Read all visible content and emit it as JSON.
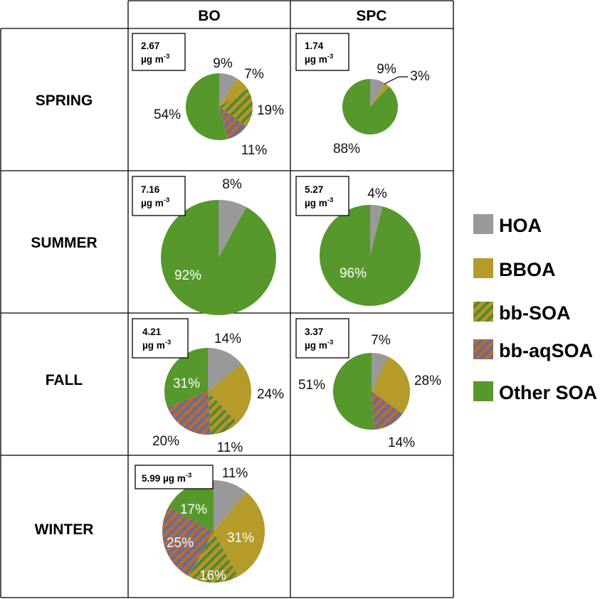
{
  "columns": [
    "BO",
    "SPC"
  ],
  "rows": [
    "SPRING",
    "SUMMER",
    "FALL",
    "WINTER"
  ],
  "colors": {
    "HOA": "#999999",
    "BBOA": "#B49B2A",
    "bb-SOA_base": "#B8932C",
    "bb-SOA_stripe": "#4E8B2E",
    "bb-aqSOA_base": "#6A6E8E",
    "bb-aqSOA_stripe": "#C06A2A",
    "Other SOA": "#56982C"
  },
  "legend": [
    {
      "key": "HOA",
      "label": "HOA",
      "fill": "solid"
    },
    {
      "key": "BBOA",
      "label": "BBOA",
      "fill": "solid"
    },
    {
      "key": "bb-SOA",
      "label": "bb-SOA",
      "fill": "hatched"
    },
    {
      "key": "bb-aqSOA",
      "label": "bb-aqSOA",
      "fill": "hatched"
    },
    {
      "key": "Other SOA",
      "label": "Other SOA",
      "fill": "solid"
    }
  ],
  "chart_data": [
    {
      "type": "pie",
      "row": "SPRING",
      "column": "BO",
      "mass_value": "2.67",
      "mass_unit": "µg m",
      "mass_exp": "-3",
      "slices": [
        {
          "component": "HOA",
          "value": 9,
          "label": "9%"
        },
        {
          "component": "BBOA",
          "value": 7,
          "label": "7%"
        },
        {
          "component": "bb-SOA",
          "value": 19,
          "label": "19%"
        },
        {
          "component": "bb-aqSOA",
          "value": 11,
          "label": "11%"
        },
        {
          "component": "Other SOA",
          "value": 54,
          "label": "54%"
        }
      ]
    },
    {
      "type": "pie",
      "row": "SPRING",
      "column": "SPC",
      "mass_value": "1.74",
      "mass_unit": "µg m",
      "mass_exp": "-3",
      "slices": [
        {
          "component": "HOA",
          "value": 9,
          "label": "9%"
        },
        {
          "component": "BBOA",
          "value": 3,
          "label": "3%"
        },
        {
          "component": "Other SOA",
          "value": 88,
          "label": "88%"
        }
      ]
    },
    {
      "type": "pie",
      "row": "SUMMER",
      "column": "BO",
      "mass_value": "7.16",
      "mass_unit": "µg m",
      "mass_exp": "-3",
      "slices": [
        {
          "component": "HOA",
          "value": 8,
          "label": "8%"
        },
        {
          "component": "Other SOA",
          "value": 92,
          "label": "92%"
        }
      ]
    },
    {
      "type": "pie",
      "row": "SUMMER",
      "column": "SPC",
      "mass_value": "5.27",
      "mass_unit": "µg m",
      "mass_exp": "-3",
      "slices": [
        {
          "component": "HOA",
          "value": 4,
          "label": "4%"
        },
        {
          "component": "Other SOA",
          "value": 96,
          "label": "96%"
        }
      ]
    },
    {
      "type": "pie",
      "row": "FALL",
      "column": "BO",
      "mass_value": "4.21",
      "mass_unit": "µg m",
      "mass_exp": "-3",
      "slices": [
        {
          "component": "HOA",
          "value": 14,
          "label": "14%"
        },
        {
          "component": "BBOA",
          "value": 24,
          "label": "24%"
        },
        {
          "component": "bb-SOA",
          "value": 11,
          "label": "11%"
        },
        {
          "component": "bb-aqSOA",
          "value": 20,
          "label": "20%"
        },
        {
          "component": "Other SOA",
          "value": 31,
          "label": "31%"
        }
      ]
    },
    {
      "type": "pie",
      "row": "FALL",
      "column": "SPC",
      "mass_value": "3.37",
      "mass_unit": "µg m",
      "mass_exp": "-3",
      "slices": [
        {
          "component": "HOA",
          "value": 7,
          "label": "7%"
        },
        {
          "component": "BBOA",
          "value": 28,
          "label": "28%"
        },
        {
          "component": "bb-aqSOA",
          "value": 14,
          "label": "14%"
        },
        {
          "component": "Other SOA",
          "value": 51,
          "label": "51%"
        }
      ]
    },
    {
      "type": "pie",
      "row": "WINTER",
      "column": "BO",
      "mass_value": "5.99",
      "mass_unit": "µg m",
      "mass_exp": "-3",
      "slices": [
        {
          "component": "HOA",
          "value": 11,
          "label": "11%"
        },
        {
          "component": "BBOA",
          "value": 31,
          "label": "31%"
        },
        {
          "component": "bb-SOA",
          "value": 16,
          "label": "16%"
        },
        {
          "component": "bb-aqSOA",
          "value": 25,
          "label": "25%"
        },
        {
          "component": "Other SOA",
          "value": 17,
          "label": "17%"
        }
      ]
    }
  ]
}
